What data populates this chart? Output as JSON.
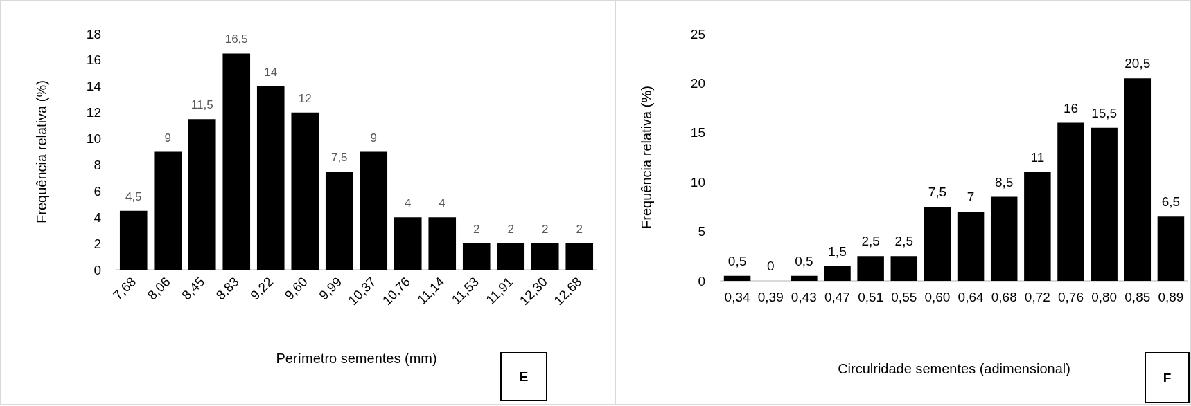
{
  "chart_data": [
    {
      "type": "bar",
      "xlabel": "Perímetro sementes (mm)",
      "ylabel": "Frequência relativa (%)",
      "categories": [
        "7,68",
        "8,06",
        "8,45",
        "8,83",
        "9,22",
        "9,60",
        "9,99",
        "10,37",
        "10,76",
        "11,14",
        "11,53",
        "11,91",
        "12,30",
        "12,68"
      ],
      "values": [
        4.5,
        9,
        11.5,
        16.5,
        14,
        12,
        7.5,
        9,
        4,
        4,
        2,
        2,
        2,
        2
      ],
      "color": "#000000",
      "value_labels": [
        "4,5",
        "9",
        "11,5",
        "16,5",
        "14",
        "12",
        "7,5",
        "9",
        "4",
        "4",
        "2",
        "2",
        "2",
        "2"
      ],
      "ylim": [
        0,
        18
      ],
      "yticks": [
        0,
        2,
        4,
        6,
        8,
        10,
        12,
        14,
        16,
        18
      ],
      "grid": false,
      "annotations": [
        "E"
      ]
    },
    {
      "type": "bar",
      "xlabel": "Circulridade sementes (adimensional)",
      "ylabel": "Frequência relativa (%)",
      "categories": [
        "0,34",
        "0,39",
        "0,43",
        "0,47",
        "0,51",
        "0,55",
        "0,60",
        "0,64",
        "0,68",
        "0,72",
        "0,76",
        "0,80",
        "0,85",
        "0,89"
      ],
      "values": [
        0.5,
        0,
        0.5,
        1.5,
        2.5,
        2.5,
        7.5,
        7,
        8.5,
        11,
        16,
        15.5,
        20.5,
        6.5
      ],
      "color": "#000000",
      "value_labels": [
        "0,5",
        "0",
        "0,5",
        "1,5",
        "2,5",
        "2,5",
        "7,5",
        "7",
        "8,5",
        "11",
        "16",
        "15,5",
        "20,5",
        "6,5"
      ],
      "ylim": [
        0,
        25
      ],
      "yticks": [
        0,
        5,
        10,
        15,
        20,
        25
      ],
      "grid": false,
      "annotations": [
        "F"
      ]
    }
  ]
}
